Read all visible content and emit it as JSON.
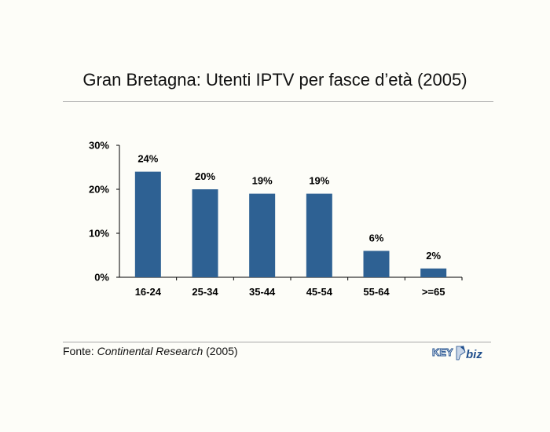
{
  "title": "Gran Bretagna: Utenti IPTV per fasce d’età (2005)",
  "source": {
    "prefix": "Fonte: ",
    "name": "Continental Research",
    "suffix": " (2005)"
  },
  "logo": {
    "text_left": "KEY",
    "text_right": "biz"
  },
  "colors": {
    "bar": "#2e6193",
    "axis": "#000000"
  },
  "chart_data": {
    "type": "bar",
    "title": "Gran Bretagna: Utenti IPTV per fasce d’età (2005)",
    "xlabel": "",
    "ylabel": "",
    "categories": [
      "16-24",
      "25-34",
      "35-44",
      "45-54",
      "55-64",
      ">=65"
    ],
    "values": [
      24,
      20,
      19,
      19,
      6,
      2
    ],
    "value_labels": [
      "24%",
      "20%",
      "19%",
      "19%",
      "6%",
      "2%"
    ],
    "ylim": [
      0,
      30
    ],
    "yticks": [
      0,
      10,
      20,
      30
    ],
    "ytick_labels": [
      "0%",
      "10%",
      "20%",
      "30%"
    ],
    "grid": false,
    "legend": "none"
  }
}
